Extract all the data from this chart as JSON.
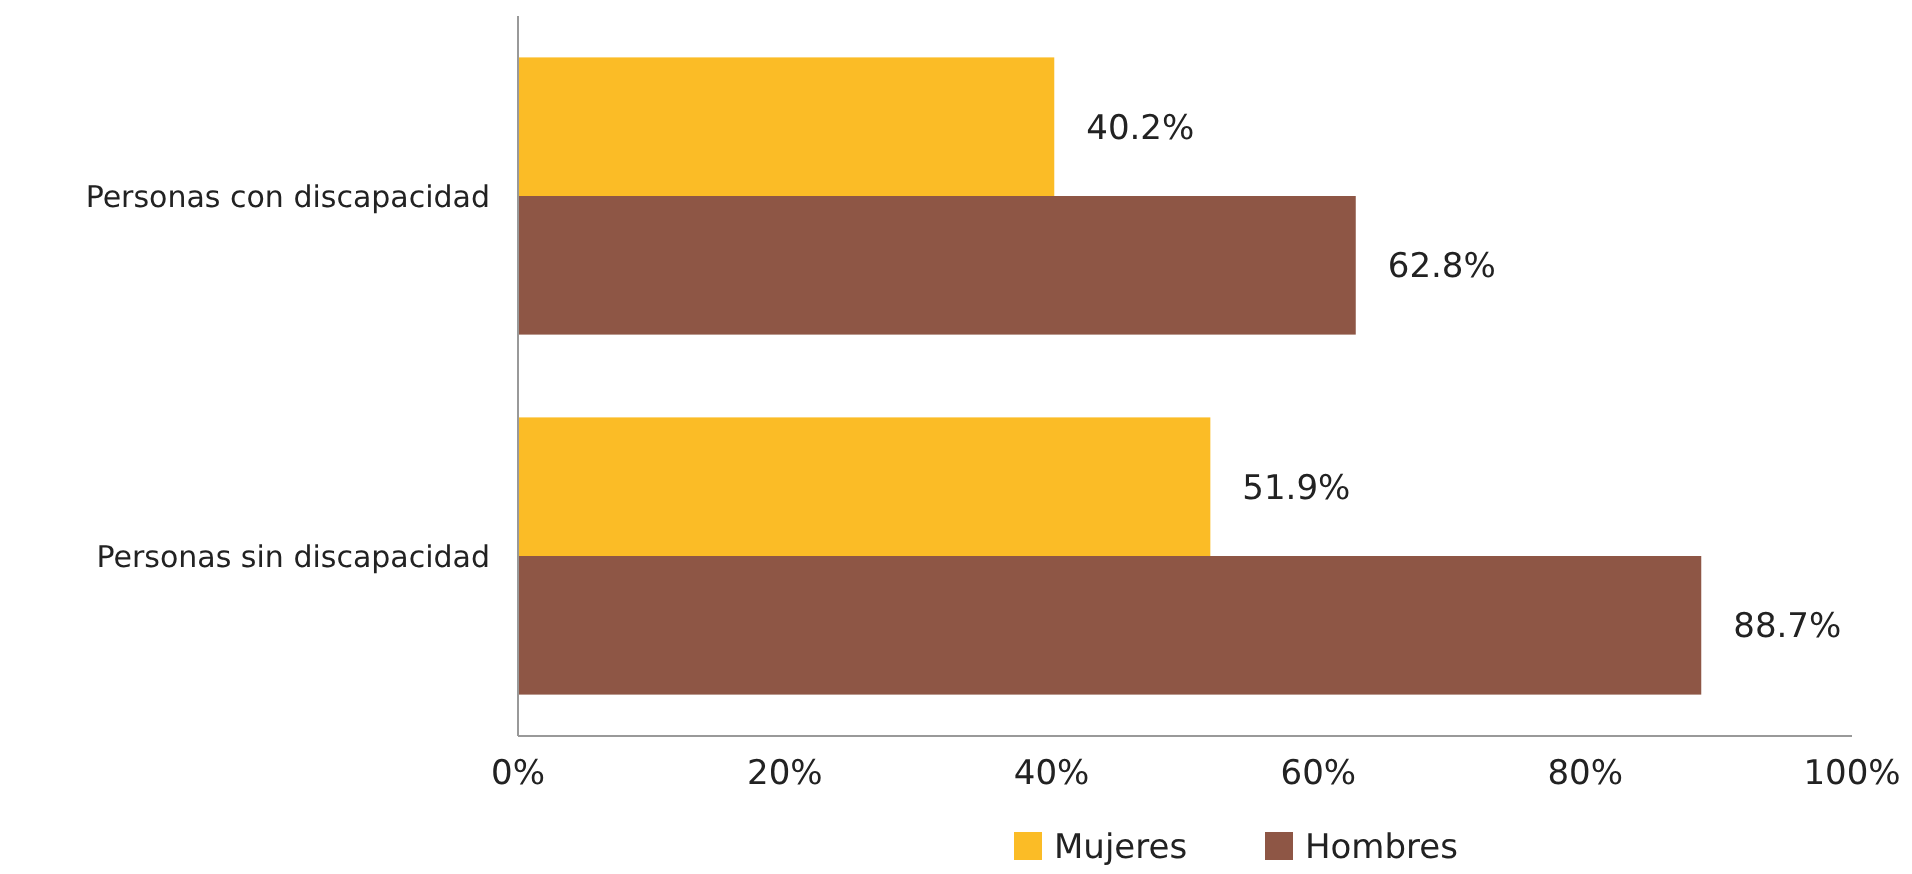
{
  "chart_data": {
    "type": "bar",
    "orientation": "horizontal",
    "categories": [
      "Personas con discapacidad",
      "Personas sin discapacidad"
    ],
    "series": [
      {
        "name": "Mujeres",
        "color": "#fbbc26",
        "values": [
          40.2,
          51.9
        ],
        "value_labels": [
          "40.2%",
          "51.9%"
        ]
      },
      {
        "name": "Hombres",
        "color": "#8e5645",
        "values": [
          62.8,
          88.7
        ],
        "value_labels": [
          "62.8%",
          "88.7%"
        ]
      }
    ],
    "xlim": [
      0,
      100
    ],
    "xticks": [
      {
        "value": 0,
        "label": "0%"
      },
      {
        "value": 20,
        "label": "20%"
      },
      {
        "value": 40,
        "label": "40%"
      },
      {
        "value": 60,
        "label": "60%"
      },
      {
        "value": 80,
        "label": "80%"
      },
      {
        "value": 100,
        "label": "100%"
      }
    ],
    "legend": "bottom"
  }
}
